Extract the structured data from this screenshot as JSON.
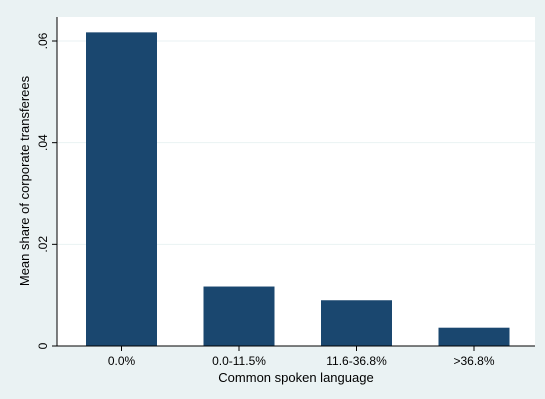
{
  "chart_data": {
    "type": "bar",
    "categories": [
      "0.0%",
      "0.0-11.5%",
      "11.6-36.8%",
      ">36.8%"
    ],
    "values": [
      0.0617,
      0.0117,
      0.009,
      0.0036
    ],
    "xlabel": "Common spoken language",
    "ylabel": "Mean share of corporate transferees",
    "ylim": [
      0,
      0.064
    ],
    "yticks": [
      0,
      0.02,
      0.04,
      0.06
    ],
    "ytick_labels": [
      "0",
      ".02",
      ".04",
      ".06"
    ],
    "grid": true,
    "colors": {
      "bar": "#1a476f",
      "plot_bg": "#ffffff",
      "outer_bg": "#eaf2f3",
      "grid": "#eaf2f3"
    }
  }
}
